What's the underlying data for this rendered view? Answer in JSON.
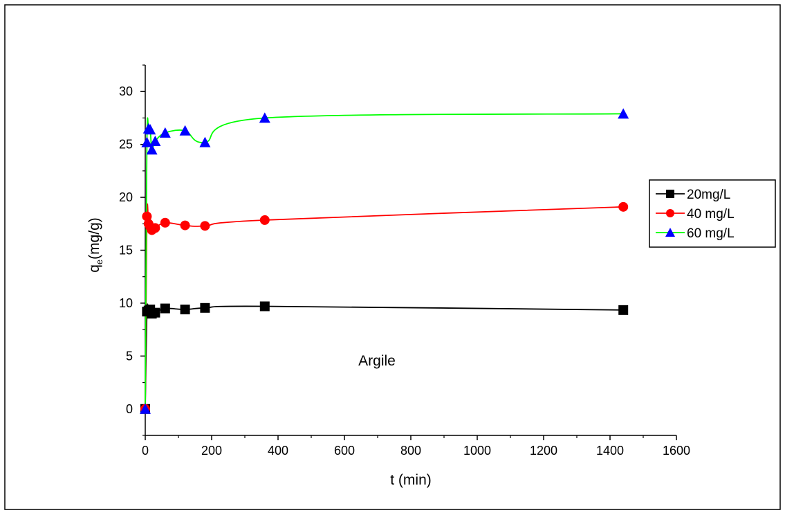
{
  "chart_data": {
    "type": "line",
    "title": "",
    "xlabel": "t (min)",
    "ylabel_main": "q",
    "ylabel_sub": "e",
    "ylabel_unit": "(mg/g)",
    "annotation": "Argile",
    "xlim": [
      0,
      1600
    ],
    "ylim": [
      -2.5,
      32.5
    ],
    "xticks": [
      0,
      200,
      400,
      600,
      800,
      1000,
      1200,
      1400,
      1600
    ],
    "yticks": [
      0,
      5,
      10,
      15,
      20,
      25,
      30
    ],
    "xtick_labels": [
      "0",
      "200",
      "400",
      "600",
      "800",
      "1000",
      "1200",
      "1400",
      "1600"
    ],
    "ytick_labels": [
      "0",
      "5",
      "10",
      "15",
      "20",
      "25",
      "30"
    ],
    "grid": false,
    "legend_position": "right",
    "series": [
      {
        "name": "20mg/L",
        "color": "#000000",
        "marker": "square",
        "x": [
          0,
          5,
          10,
          15,
          20,
          30,
          60,
          120,
          180,
          360,
          1440
        ],
        "y": [
          0,
          9.2,
          9.3,
          9.4,
          9.0,
          9.1,
          9.5,
          9.4,
          9.55,
          9.7,
          9.35
        ]
      },
      {
        "name": "40 mg/L",
        "color": "#ff0000",
        "marker": "circle",
        "x": [
          0,
          5,
          10,
          15,
          20,
          30,
          60,
          120,
          180,
          360,
          1440
        ],
        "y": [
          0,
          18.2,
          17.5,
          17.2,
          16.9,
          17.1,
          17.6,
          17.35,
          17.3,
          17.85,
          19.1
        ]
      },
      {
        "name": "60 mg/L",
        "color": "#0000ff",
        "line_color": "#00ff00",
        "marker": "triangle",
        "x": [
          0,
          5,
          10,
          15,
          20,
          30,
          60,
          120,
          180,
          360,
          1440
        ],
        "y": [
          0,
          25.2,
          26.5,
          26.4,
          24.5,
          25.3,
          26.1,
          26.3,
          25.2,
          27.5,
          27.9
        ]
      }
    ]
  }
}
